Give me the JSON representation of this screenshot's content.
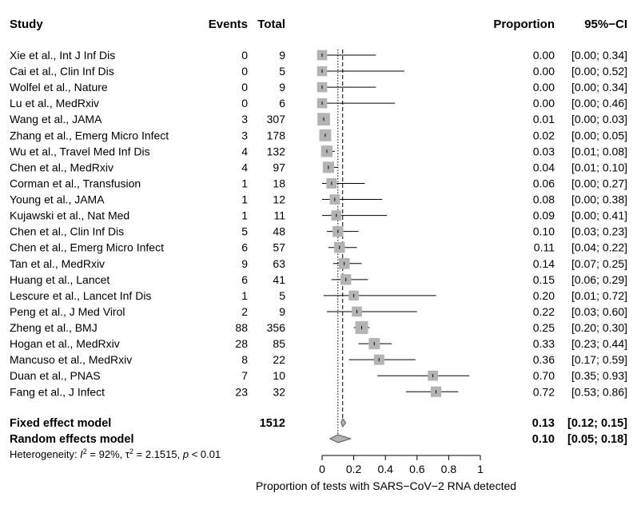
{
  "chart_data": {
    "type": "forest",
    "headers": {
      "study": "Study",
      "events": "Events",
      "total": "Total",
      "proportion": "Proportion",
      "ci": "95%−CI"
    },
    "studies": [
      {
        "name": "Xie et al., Int J Inf Dis",
        "events": "0",
        "total": "9",
        "proportion": "0.00",
        "ci": "[0.00; 0.34]",
        "est": 0.0,
        "lo": 0.0,
        "hi": 0.34
      },
      {
        "name": "Cai et al., Clin Inf Dis",
        "events": "0",
        "total": "5",
        "proportion": "0.00",
        "ci": "[0.00; 0.52]",
        "est": 0.0,
        "lo": 0.0,
        "hi": 0.52
      },
      {
        "name": "Wolfel et al., Nature",
        "events": "0",
        "total": "9",
        "proportion": "0.00",
        "ci": "[0.00; 0.34]",
        "est": 0.0,
        "lo": 0.0,
        "hi": 0.34
      },
      {
        "name": "Lu et al., MedRxiv",
        "events": "0",
        "total": "6",
        "proportion": "0.00",
        "ci": "[0.00; 0.46]",
        "est": 0.0,
        "lo": 0.0,
        "hi": 0.46
      },
      {
        "name": "Wang et al., JAMA",
        "events": "3",
        "total": "307",
        "proportion": "0.01",
        "ci": "[0.00; 0.03]",
        "est": 0.01,
        "lo": 0.0,
        "hi": 0.03
      },
      {
        "name": "Zhang et al., Emerg Micro Infect",
        "events": "3",
        "total": "178",
        "proportion": "0.02",
        "ci": "[0.00; 0.05]",
        "est": 0.02,
        "lo": 0.0,
        "hi": 0.05
      },
      {
        "name": "Wu et al., Travel Med Inf Dis",
        "events": "4",
        "total": "132",
        "proportion": "0.03",
        "ci": "[0.01; 0.08]",
        "est": 0.03,
        "lo": 0.01,
        "hi": 0.08
      },
      {
        "name": "Chen et al., MedRxiv",
        "events": "4",
        "total": "97",
        "proportion": "0.04",
        "ci": "[0.01; 0.10]",
        "est": 0.04,
        "lo": 0.01,
        "hi": 0.1
      },
      {
        "name": "Corman et al., Transfusion",
        "events": "1",
        "total": "18",
        "proportion": "0.06",
        "ci": "[0.00; 0.27]",
        "est": 0.06,
        "lo": 0.0,
        "hi": 0.27
      },
      {
        "name": "Young et al., JAMA",
        "events": "1",
        "total": "12",
        "proportion": "0.08",
        "ci": "[0.00; 0.38]",
        "est": 0.08,
        "lo": 0.0,
        "hi": 0.38
      },
      {
        "name": "Kujawski et al., Nat Med",
        "events": "1",
        "total": "11",
        "proportion": "0.09",
        "ci": "[0.00; 0.41]",
        "est": 0.09,
        "lo": 0.0,
        "hi": 0.41
      },
      {
        "name": "Chen et al., Clin Inf Dis",
        "events": "5",
        "total": "48",
        "proportion": "0.10",
        "ci": "[0.03; 0.23]",
        "est": 0.1,
        "lo": 0.03,
        "hi": 0.23
      },
      {
        "name": "Chen et al., Emerg Micro Infect",
        "events": "6",
        "total": "57",
        "proportion": "0.11",
        "ci": "[0.04; 0.22]",
        "est": 0.11,
        "lo": 0.04,
        "hi": 0.22
      },
      {
        "name": "Tan et al., MedRxiv",
        "events": "9",
        "total": "63",
        "proportion": "0.14",
        "ci": "[0.07; 0.25]",
        "est": 0.14,
        "lo": 0.07,
        "hi": 0.25
      },
      {
        "name": "Huang et al., Lancet",
        "events": "6",
        "total": "41",
        "proportion": "0.15",
        "ci": "[0.06; 0.29]",
        "est": 0.15,
        "lo": 0.06,
        "hi": 0.29
      },
      {
        "name": "Lescure et al., Lancet Inf Dis",
        "events": "1",
        "total": "5",
        "proportion": "0.20",
        "ci": "[0.01; 0.72]",
        "est": 0.2,
        "lo": 0.01,
        "hi": 0.72
      },
      {
        "name": "Peng et al., J Med Virol",
        "events": "2",
        "total": "9",
        "proportion": "0.22",
        "ci": "[0.03; 0.60]",
        "est": 0.22,
        "lo": 0.03,
        "hi": 0.6
      },
      {
        "name": "Zheng et al., BMJ",
        "events": "88",
        "total": "356",
        "proportion": "0.25",
        "ci": "[0.20; 0.30]",
        "est": 0.25,
        "lo": 0.2,
        "hi": 0.3
      },
      {
        "name": "Hogan et al., MedRxiv",
        "events": "28",
        "total": "85",
        "proportion": "0.33",
        "ci": "[0.23; 0.44]",
        "est": 0.33,
        "lo": 0.23,
        "hi": 0.44
      },
      {
        "name": "Mancuso et al., MedRxiv",
        "events": "8",
        "total": "22",
        "proportion": "0.36",
        "ci": "[0.17; 0.59]",
        "est": 0.36,
        "lo": 0.17,
        "hi": 0.59
      },
      {
        "name": "Duan et al., PNAS",
        "events": "7",
        "total": "10",
        "proportion": "0.70",
        "ci": "[0.35; 0.93]",
        "est": 0.7,
        "lo": 0.35,
        "hi": 0.93
      },
      {
        "name": "Fang et al., J Infect",
        "events": "23",
        "total": "32",
        "proportion": "0.72",
        "ci": "[0.53; 0.86]",
        "est": 0.72,
        "lo": 0.53,
        "hi": 0.86
      }
    ],
    "summaries": [
      {
        "name": "Fixed effect model",
        "total": "1512",
        "proportion": "0.13",
        "ci": "[0.12; 0.15]",
        "est": 0.13,
        "lo": 0.12,
        "hi": 0.15
      },
      {
        "name": "Random effects model",
        "total": "",
        "proportion": "0.10",
        "ci": "[0.05; 0.18]",
        "est": 0.1,
        "lo": 0.05,
        "hi": 0.18
      }
    ],
    "heterogeneity": {
      "prefix": "Heterogeneity: ",
      "i2_symbol": "I",
      "i2_value": " = 92%, ",
      "tau2_symbol": "τ",
      "tau2_value": " = 2.1515, ",
      "p_symbol": "p",
      "p_value": " < 0.01"
    },
    "x_axis": {
      "ticks": [
        "0",
        "0.2",
        "0.4",
        "0.6",
        "0.8",
        "1"
      ],
      "tick_values": [
        0,
        0.2,
        0.4,
        0.6,
        0.8,
        1
      ],
      "range": [
        0,
        1
      ],
      "label": "Proportion of tests with SARS−CoV−2 RNA detected"
    },
    "reference_lines": {
      "fixed": 0.13,
      "random": 0.1
    },
    "colors": {
      "box": "#b3b3b3",
      "diamond": "#b3b3b3",
      "line": "#000000"
    }
  }
}
